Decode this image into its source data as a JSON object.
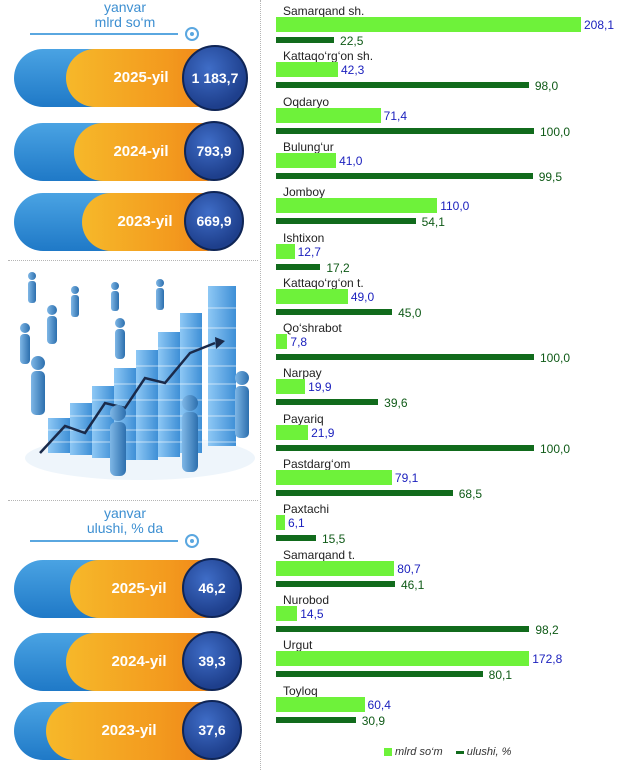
{
  "top_header": {
    "line1": "yanvar",
    "line2": "mlrd so‘m"
  },
  "top_pills": [
    {
      "year": "2025-yil",
      "value": "1 183,7"
    },
    {
      "year": "2024-yil",
      "value": "793,9"
    },
    {
      "year": "2023-yil",
      "value": "669,9"
    }
  ],
  "bottom_header": {
    "line1": "yanvar",
    "line2": "ulushi, % da"
  },
  "bottom_pills": [
    {
      "year": "2025-yil",
      "value": "46,2"
    },
    {
      "year": "2024-yil",
      "value": "39,3"
    },
    {
      "year": "2023-yil",
      "value": "37,6"
    }
  ],
  "chart_data": {
    "type": "bar",
    "orientation": "horizontal",
    "categories": [
      "Samarqand sh.",
      "Kattaqo‘rg‘on sh.",
      "Oqdaryo",
      "Bulung‘ur",
      "Jomboy",
      "Ishtixon",
      "Kattaqo‘rg‘on t.",
      "Qo‘shrabot",
      "Narpay",
      "Payariq",
      "Pastdarg‘om",
      "Paxtachi",
      "Samarqand t.",
      "Nurobod",
      "Urgut",
      "Toyloq"
    ],
    "series": [
      {
        "name": "mlrd so‘m",
        "color": "#6ef23a",
        "values": [
          208.1,
          42.3,
          71.4,
          41.0,
          110.0,
          12.7,
          49.0,
          7.8,
          19.9,
          21.9,
          79.1,
          6.1,
          80.7,
          14.5,
          172.8,
          60.4
        ],
        "labels": [
          "208,1",
          "42,3",
          "71,4",
          "41,0",
          "110,0",
          "12,7",
          "49,0",
          "7,8",
          "19,9",
          "21,9",
          "79,1",
          "6,1",
          "80,7",
          "14,5",
          "172,8",
          "60,4"
        ]
      },
      {
        "name": "ulushi, %",
        "color": "#116b1c",
        "values": [
          22.5,
          98.0,
          100.0,
          99.5,
          54.1,
          17.2,
          45.0,
          100.0,
          39.6,
          100.0,
          68.5,
          15.5,
          46.1,
          98.2,
          80.1,
          30.9
        ],
        "labels": [
          "22,5",
          "98,0",
          "100,0",
          "99,5",
          "54,1",
          "17,2",
          "45,0",
          "100,0",
          "39,6",
          "100,0",
          "68,5",
          "15,5",
          "46,1",
          "98,2",
          "80,1",
          "30,9"
        ]
      }
    ],
    "legend_position": "bottom"
  }
}
